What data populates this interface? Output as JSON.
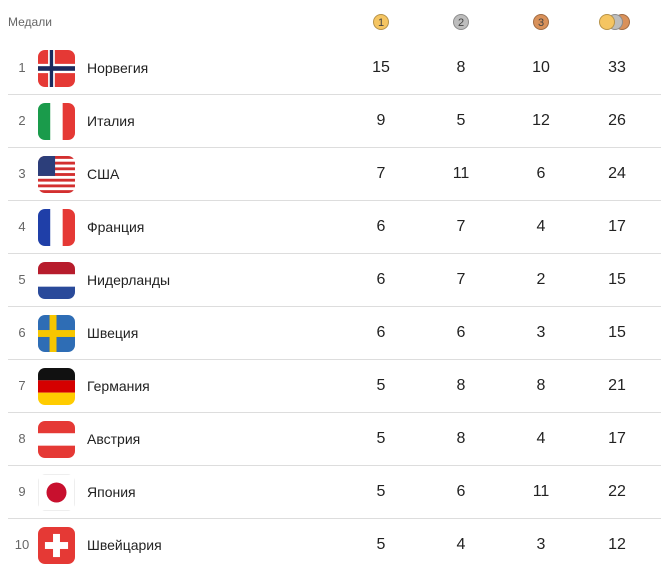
{
  "header": {
    "label": "Медали",
    "gold": "1",
    "silver": "2",
    "bronze": "3"
  },
  "colors": {
    "gold": "#f5c562",
    "silver": "#bdbdbd",
    "bronze": "#d9915a"
  },
  "rows": [
    {
      "rank": "1",
      "country": "Норвегия",
      "flag": "norway",
      "gold": "15",
      "silver": "8",
      "bronze": "10",
      "total": "33"
    },
    {
      "rank": "2",
      "country": "Италия",
      "flag": "italy",
      "gold": "9",
      "silver": "5",
      "bronze": "12",
      "total": "26"
    },
    {
      "rank": "3",
      "country": "США",
      "flag": "usa",
      "gold": "7",
      "silver": "11",
      "bronze": "6",
      "total": "24"
    },
    {
      "rank": "4",
      "country": "Франция",
      "flag": "france",
      "gold": "6",
      "silver": "7",
      "bronze": "4",
      "total": "17"
    },
    {
      "rank": "5",
      "country": "Нидерланды",
      "flag": "netherlands",
      "gold": "6",
      "silver": "7",
      "bronze": "2",
      "total": "15"
    },
    {
      "rank": "6",
      "country": "Швеция",
      "flag": "sweden",
      "gold": "6",
      "silver": "6",
      "bronze": "3",
      "total": "15"
    },
    {
      "rank": "7",
      "country": "Германия",
      "flag": "germany",
      "gold": "5",
      "silver": "8",
      "bronze": "8",
      "total": "21"
    },
    {
      "rank": "8",
      "country": "Австрия",
      "flag": "austria",
      "gold": "5",
      "silver": "8",
      "bronze": "4",
      "total": "17"
    },
    {
      "rank": "9",
      "country": "Япония",
      "flag": "japan",
      "gold": "5",
      "silver": "6",
      "bronze": "11",
      "total": "22"
    },
    {
      "rank": "10",
      "country": "Швейцария",
      "flag": "switzerland",
      "gold": "5",
      "silver": "4",
      "bronze": "3",
      "total": "12"
    }
  ]
}
